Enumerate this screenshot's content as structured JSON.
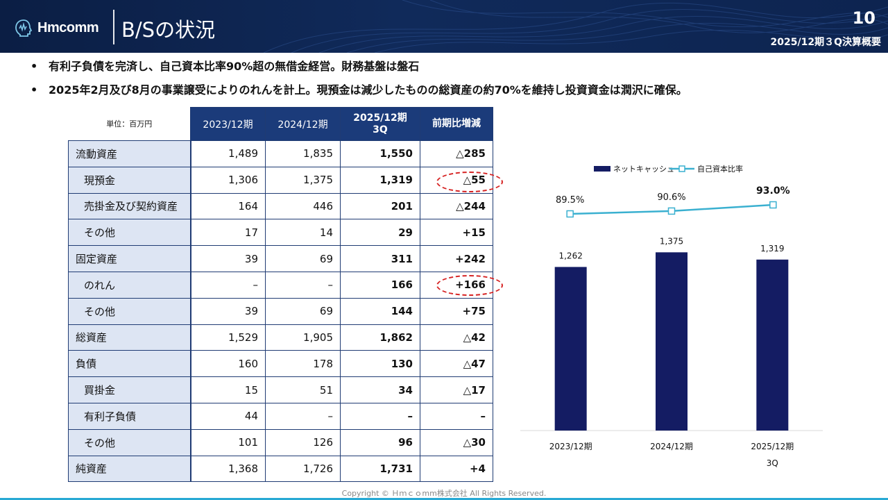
{
  "header": {
    "logo_text": "Hmcomm",
    "title": "B/Sの状況",
    "page_number": "10",
    "report_label": "2025/12期３Q決算概要"
  },
  "bullets": [
    "有利子負債を完済し、自己資本比率90%超の無借金経営。財務基盤は盤石",
    "2025年2月及び8月の事業譲受によりのれんを計上。現預金は減少したものの総資産の約70%を維持し投資資金は潤沢に確保。"
  ],
  "table": {
    "unit": "単位：百万円",
    "columns": [
      "2023/12期",
      "2024/12期",
      "2025/12期\n3Q",
      "前期比増減"
    ],
    "rows": [
      {
        "label": "流動資産",
        "sub": false,
        "values": [
          "1,489",
          "1,835",
          "1,550",
          "△285"
        ]
      },
      {
        "label": "現預金",
        "sub": true,
        "values": [
          "1,306",
          "1,375",
          "1,319",
          "△55"
        ]
      },
      {
        "label": "売掛金及び契約資産",
        "sub": true,
        "values": [
          "164",
          "446",
          "201",
          "△244"
        ]
      },
      {
        "label": "その他",
        "sub": true,
        "values": [
          "17",
          "14",
          "29",
          "+15"
        ]
      },
      {
        "label": "固定資産",
        "sub": false,
        "values": [
          "39",
          "69",
          "311",
          "+242"
        ]
      },
      {
        "label": "のれん",
        "sub": true,
        "values": [
          "–",
          "–",
          "166",
          "+166"
        ]
      },
      {
        "label": "その他",
        "sub": true,
        "values": [
          "39",
          "69",
          "144",
          "+75"
        ]
      },
      {
        "label": "総資産",
        "sub": false,
        "values": [
          "1,529",
          "1,905",
          "1,862",
          "△42"
        ]
      },
      {
        "label": "負債",
        "sub": false,
        "values": [
          "160",
          "178",
          "130",
          "△47"
        ]
      },
      {
        "label": "買掛金",
        "sub": true,
        "values": [
          "15",
          "51",
          "34",
          "△17"
        ]
      },
      {
        "label": "有利子負債",
        "sub": true,
        "values": [
          "44",
          "–",
          "–",
          "–"
        ]
      },
      {
        "label": "その他",
        "sub": true,
        "values": [
          "101",
          "126",
          "96",
          "△30"
        ]
      },
      {
        "label": "純資産",
        "sub": false,
        "values": [
          "1,368",
          "1,726",
          "1,731",
          "+4"
        ]
      }
    ]
  },
  "chart_data": {
    "type": "bar",
    "categories": [
      "2023/12期",
      "2024/12期",
      "2025/12期\n3Q"
    ],
    "series": [
      {
        "name": "ネットキャッシュ",
        "type": "bar",
        "values": [
          1262,
          1375,
          1319
        ],
        "labels": [
          "1,262",
          "1,375",
          "1,319"
        ],
        "color": "#141c63"
      },
      {
        "name": "自己資本比率",
        "type": "line",
        "values": [
          89.5,
          90.6,
          93.0
        ],
        "labels": [
          "89.5%",
          "90.6%",
          "93.0%"
        ],
        "color": "#3ab0d0"
      }
    ],
    "legend_position": "top"
  },
  "copyright": "Copyright © Ｈｍｃｏmm株式会社 All Rights Reserved.",
  "colors": {
    "header": "#0f2550",
    "table_header": "#1b3b7a",
    "label_bg": "#dde5f3",
    "bar": "#141c63",
    "line": "#3ab0d0",
    "accent_bar": "#28a9d4",
    "circle": "#d62222"
  }
}
